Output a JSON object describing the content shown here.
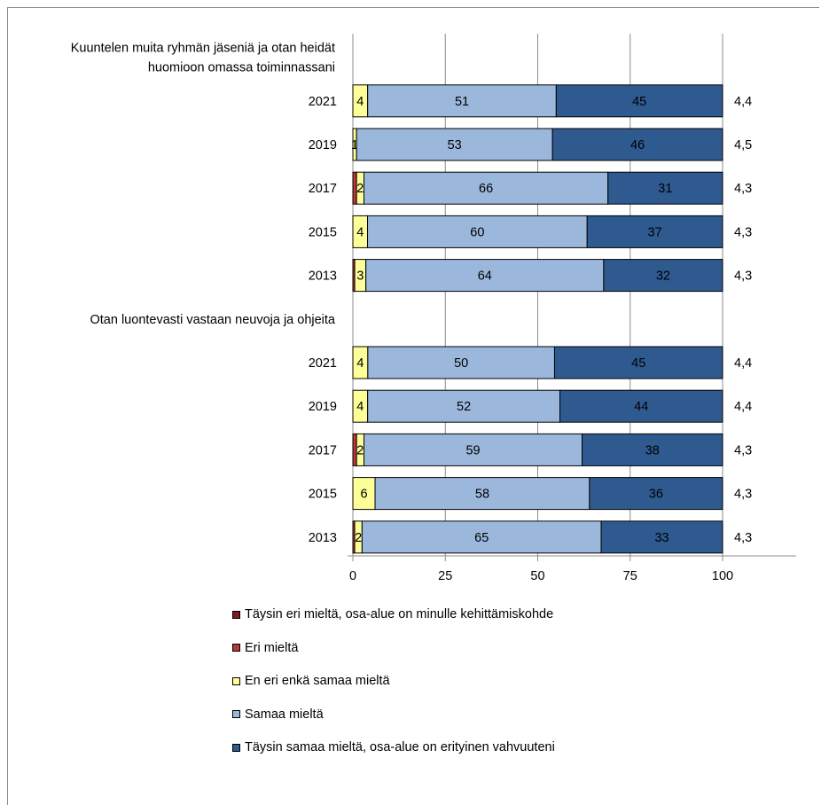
{
  "chart_data": {
    "type": "bar",
    "orientation": "horizontal",
    "stacked": true,
    "xlim": [
      0,
      100
    ],
    "xticks": [
      "0",
      "25",
      "50",
      "75",
      "100"
    ],
    "grid": true,
    "legend_position": "bottom",
    "series": [
      {
        "name": "Täysin eri mieltä, osa-alue on minulle kehittämiskohde",
        "color": "#7b1f22"
      },
      {
        "name": "Eri mieltä",
        "color": "#b8383b"
      },
      {
        "name": "En eri enkä samaa mieltä",
        "color": "#fefe99"
      },
      {
        "name": "Samaa mieltä",
        "color": "#9bb8dc"
      },
      {
        "name": "Täysin samaa mieltä, osa-alue on erityinen vahvuuteni",
        "color": "#2e5a8f"
      }
    ],
    "groups": [
      {
        "title_lines": [
          "Kuuntelen muita ryhmän jäseniä ja otan heidät",
          "huomioon omassa toiminnassani"
        ],
        "bars": [
          {
            "year": "2021",
            "values": [
              0,
              0,
              4,
              51,
              45
            ],
            "labels": [
              "",
              "",
              "4",
              "51",
              "45"
            ],
            "mean": "4,4"
          },
          {
            "year": "2019",
            "values": [
              0,
              0,
              1,
              53,
              46
            ],
            "labels": [
              "",
              "",
              "1",
              "53",
              "46"
            ],
            "mean": "4,5"
          },
          {
            "year": "2017",
            "values": [
              0,
              1,
              2,
              66,
              31
            ],
            "labels": [
              "",
              "",
              "2",
              "66",
              "31"
            ],
            "mean": "4,3"
          },
          {
            "year": "2015",
            "values": [
              0,
              0,
              4,
              60,
              37
            ],
            "labels": [
              "",
              "",
              "4",
              "60",
              "37"
            ],
            "mean": "4,3"
          },
          {
            "year": "2013",
            "values": [
              0,
              0.5,
              3,
              64,
              32
            ],
            "labels": [
              "",
              "",
              "3",
              "64",
              "32"
            ],
            "mean": "4,3"
          }
        ]
      },
      {
        "title_lines": [
          "Otan luontevasti vastaan neuvoja ja ohjeita"
        ],
        "bars": [
          {
            "year": "2021",
            "values": [
              0,
              0,
              4,
              50,
              45
            ],
            "labels": [
              "",
              "",
              "4",
              "50",
              "45"
            ],
            "mean": "4,4"
          },
          {
            "year": "2019",
            "values": [
              0,
              0,
              4,
              52,
              44
            ],
            "labels": [
              "",
              "",
              "4",
              "52",
              "44"
            ],
            "mean": "4,4"
          },
          {
            "year": "2017",
            "values": [
              0,
              1,
              2,
              59,
              38
            ],
            "labels": [
              "",
              "",
              "2",
              "59",
              "38"
            ],
            "mean": "4,3"
          },
          {
            "year": "2015",
            "values": [
              0,
              0,
              6,
              58,
              36
            ],
            "labels": [
              "",
              "",
              "6",
              "58",
              "36"
            ],
            "mean": "4,3"
          },
          {
            "year": "2013",
            "values": [
              0,
              0.5,
              2,
              65,
              33
            ],
            "labels": [
              "",
              "",
              "2",
              "65",
              "33"
            ],
            "mean": "4,3"
          }
        ]
      }
    ]
  }
}
